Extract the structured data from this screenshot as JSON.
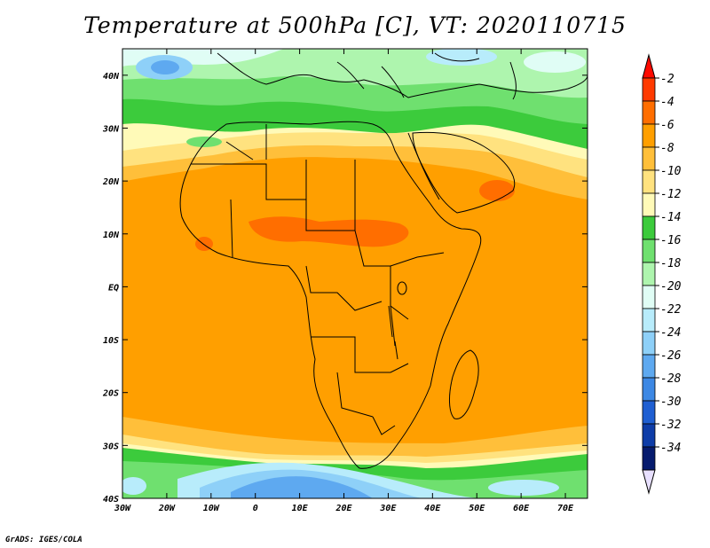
{
  "title": "Temperature at 500hPa [C], VT: 2020110715",
  "credit": "GrADS: IGES/COLA",
  "map": {
    "lon_range": [
      -30,
      75
    ],
    "lat_range": [
      -40,
      45
    ],
    "lat_ticks": [
      {
        "value": 40,
        "label": "40N"
      },
      {
        "value": 30,
        "label": "30N"
      },
      {
        "value": 20,
        "label": "20N"
      },
      {
        "value": 10,
        "label": "10N"
      },
      {
        "value": 0,
        "label": "EQ"
      },
      {
        "value": -10,
        "label": "10S"
      },
      {
        "value": -20,
        "label": "20S"
      },
      {
        "value": -30,
        "label": "30S"
      },
      {
        "value": -40,
        "label": "40S"
      }
    ],
    "lon_ticks": [
      {
        "value": -30,
        "label": "30W"
      },
      {
        "value": -20,
        "label": "20W"
      },
      {
        "value": -10,
        "label": "10W"
      },
      {
        "value": 0,
        "label": "0"
      },
      {
        "value": 10,
        "label": "10E"
      },
      {
        "value": 20,
        "label": "20E"
      },
      {
        "value": 30,
        "label": "30E"
      },
      {
        "value": 40,
        "label": "40E"
      },
      {
        "value": 50,
        "label": "50E"
      },
      {
        "value": 60,
        "label": "60E"
      },
      {
        "value": 70,
        "label": "70E"
      }
    ]
  },
  "colorbar": {
    "levels": [
      {
        "label": "-2",
        "color": "#ff3a00"
      },
      {
        "label": "-4",
        "color": "#ff6e00"
      },
      {
        "label": "-6",
        "color": "#ff9f00"
      },
      {
        "label": "-8",
        "color": "#ffbf3a"
      },
      {
        "label": "-10",
        "color": "#ffe27f"
      },
      {
        "label": "-12",
        "color": "#fffab8"
      },
      {
        "label": "-14",
        "color": "#3ccb3c"
      },
      {
        "label": "-16",
        "color": "#6fe06f"
      },
      {
        "label": "-18",
        "color": "#aef5ae"
      },
      {
        "label": "-20",
        "color": "#e0fdf5"
      },
      {
        "label": "-22",
        "color": "#b8ecfb"
      },
      {
        "label": "-24",
        "color": "#8ed0f8"
      },
      {
        "label": "-26",
        "color": "#5ea9f0"
      },
      {
        "label": "-28",
        "color": "#3d88e4"
      },
      {
        "label": "-30",
        "color": "#1f5fd2"
      },
      {
        "label": "-32",
        "color": "#0e3da8"
      },
      {
        "label": "-34",
        "color": "#061b6e"
      }
    ],
    "top_arrow_color": "#ff0a00",
    "bottom_arrow_color": "#e8e0ff"
  }
}
